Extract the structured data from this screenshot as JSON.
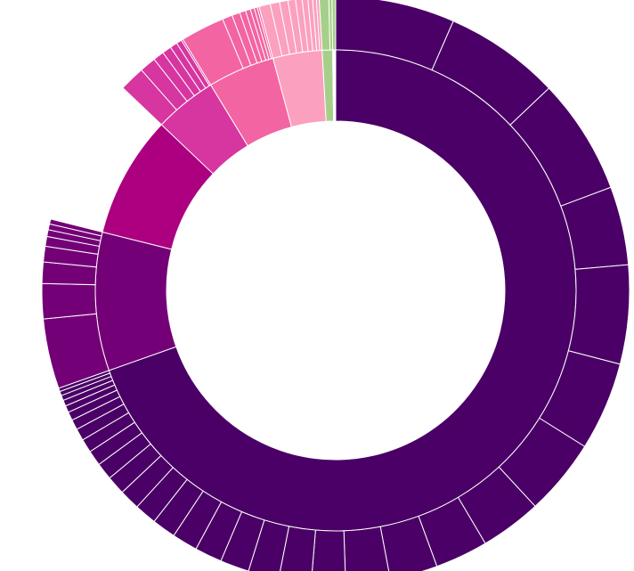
{
  "chart_data": {
    "type": "sunburst",
    "title": "",
    "legend": "none",
    "colors": {
      "level1": [
        "#4a0066",
        "#740077",
        "#ac0080",
        "#d7359f",
        "#f364a2",
        "#fba0be",
        "#a6d08a",
        "#ffffff"
      ],
      "ring2_dark": "#4a0066",
      "ring2_purple": "#740077",
      "ring2_pink": "#d7359f",
      "ring2_lightpink": "#f364a2",
      "ring2_palepink": "#fba0be",
      "ring2_green": "#a6d08a"
    },
    "level1": [
      {
        "value": 69.6
      },
      {
        "value": 9.3
      },
      {
        "value": 8.2
      },
      {
        "value": 4.2
      },
      {
        "value": 4.5
      },
      {
        "value": 3.3
      },
      {
        "value": 0.7
      },
      {
        "value": 0.2
      }
    ],
    "level2": [
      {
        "parent": 0,
        "children": [
          7.0,
          6.8,
          6.8,
          4.6,
          5.8,
          5.2,
          4.5,
          3.6,
          3.1,
          2.8,
          2.6,
          2.0,
          1.9,
          1.8,
          1.7,
          1.6,
          1.5,
          1.4,
          1.3,
          1.2,
          1.1,
          1.0,
          0.9,
          0.8,
          0.7,
          0.6,
          0.5,
          0.4,
          0.35,
          0.3,
          0.25,
          0.2
        ]
      },
      {
        "parent": 1,
        "children": [
          3.6,
          1.8,
          1.1,
          0.8,
          0.5,
          0.35,
          0.3,
          0.25
        ]
      },
      {
        "parent": 3,
        "children": [
          1.4,
          0.9,
          0.6,
          0.5,
          0.4,
          0.3,
          0.1
        ]
      },
      {
        "parent": 4,
        "children": [
          2.2,
          0.5,
          0.4,
          0.3,
          0.25,
          0.2,
          0.15,
          0.1
        ]
      },
      {
        "parent": 5,
        "children": [
          0.6,
          0.5,
          0.45,
          0.4,
          0.35,
          0.3,
          0.25,
          0.2,
          0.15
        ]
      },
      {
        "parent": 6,
        "children": [
          0.45,
          0.15
        ]
      },
      {
        "parent": 7,
        "children": [
          0.2
        ]
      }
    ]
  }
}
